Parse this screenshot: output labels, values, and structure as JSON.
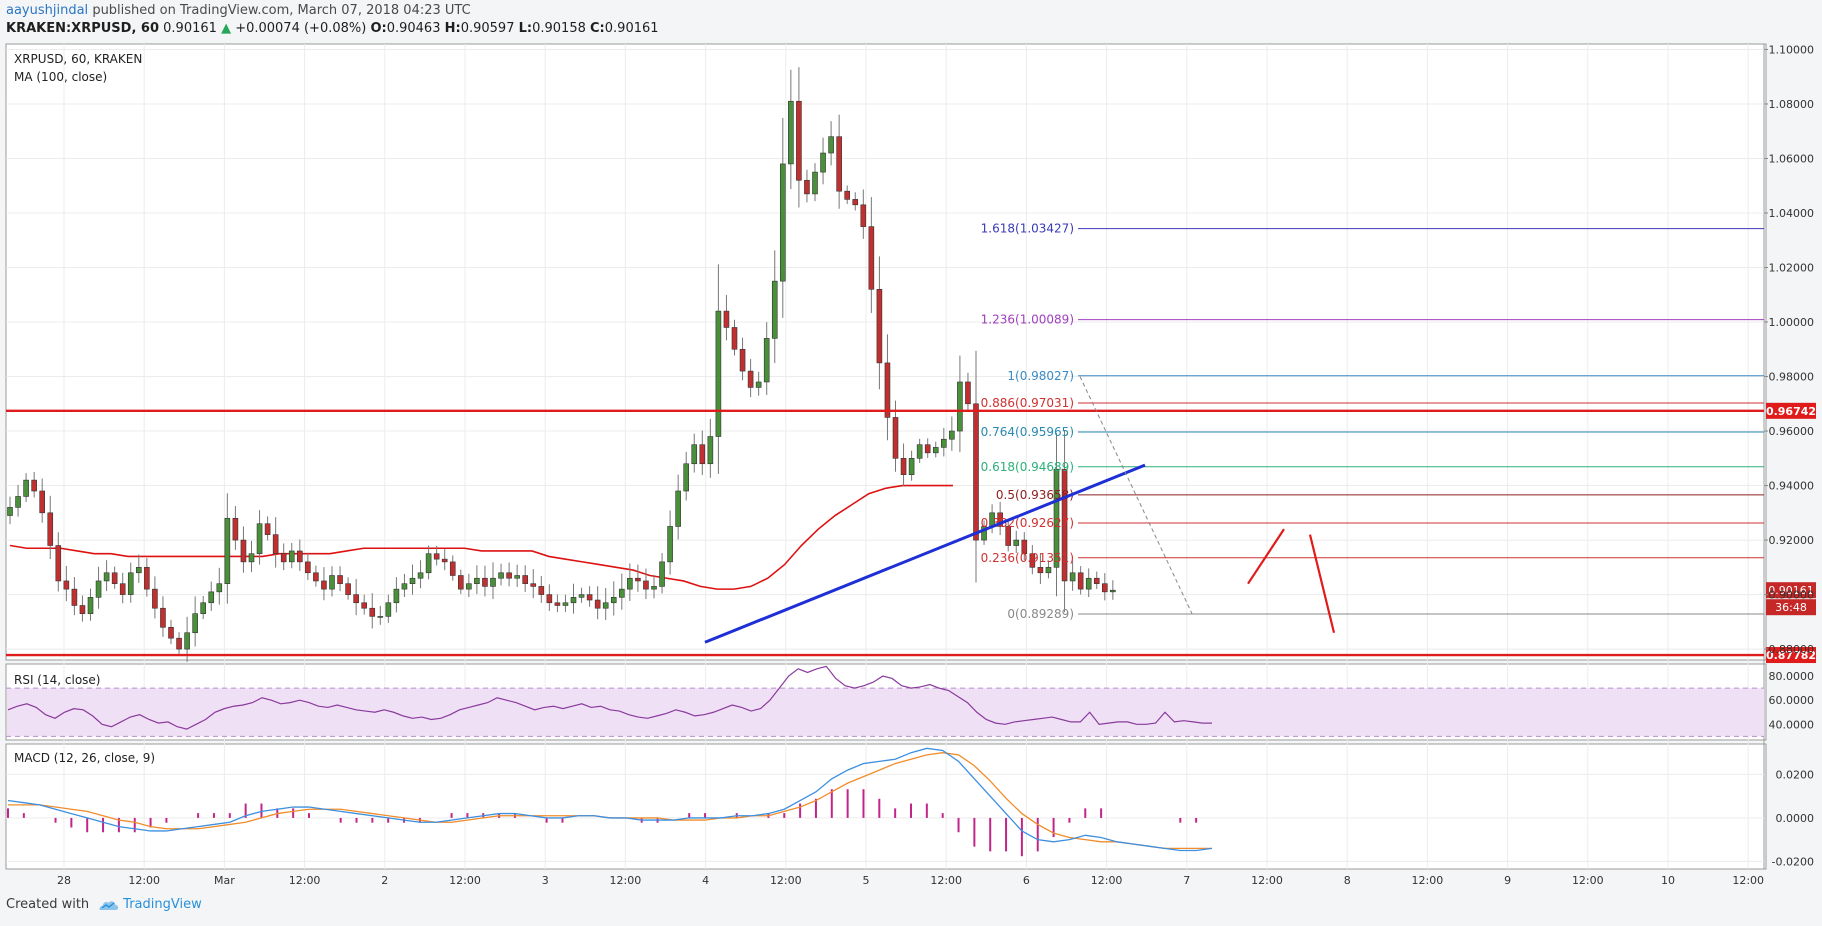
{
  "header": {
    "author": "aayushjindal",
    "published_text": "published on TradingView.com, March 07, 2018 04:23 UTC",
    "symbol_line": "KRAKEN:XRPUSD, 60",
    "last": "0.90161",
    "change_text": "+0.00074 (+0.08%)",
    "o_label": "O:",
    "o": "0.90463",
    "h_label": "H:",
    "h": "0.90597",
    "l_label": "L:",
    "l": "0.90158",
    "c_label": "C:",
    "c": "0.90161"
  },
  "panes": {
    "main_title": "XRPUSD, 60, KRAKEN",
    "ma_label": "MA (100, close)",
    "rsi_label": "RSI (14, close)",
    "macd_label": "MACD (12, 26, close, 9)"
  },
  "footer": {
    "created_with": "Created with",
    "brand": "TradingView"
  },
  "colors": {
    "up": "#4a8f3a",
    "down": "#c03030",
    "ma": "#dd1111",
    "trend": "#1e2fd6",
    "rsi": "#8a3a9c",
    "rsi_band": "#efe0f6",
    "macd": "#3d8fe0",
    "signal": "#f08c2a",
    "hist": "#c2258a"
  },
  "chart_data": [
    {
      "type": "candlestick",
      "title": "XRPUSD, 60, KRAKEN",
      "x_ticks": [
        "28",
        "12:00",
        "Mar",
        "12:00",
        "2",
        "12:00",
        "3",
        "12:00",
        "4",
        "12:00",
        "5",
        "12:00",
        "6",
        "12:00",
        "7",
        "12:00",
        "8",
        "12:00",
        "9",
        "12:00",
        "10",
        "12:00"
      ],
      "y_ticks": [
        "1.10000",
        "1.08000",
        "1.06000",
        "1.04000",
        "1.02000",
        "1.00000",
        "0.98000",
        "0.96000",
        "0.94000",
        "0.92000",
        "0.90000",
        "0.88000"
      ],
      "ylim": [
        0.876,
        1.102
      ],
      "close_series": [
        0.932,
        0.936,
        0.942,
        0.938,
        0.93,
        0.918,
        0.905,
        0.902,
        0.896,
        0.893,
        0.899,
        0.905,
        0.908,
        0.904,
        0.9,
        0.908,
        0.91,
        0.902,
        0.895,
        0.888,
        0.884,
        0.88,
        0.886,
        0.893,
        0.897,
        0.901,
        0.904,
        0.928,
        0.92,
        0.912,
        0.915,
        0.926,
        0.922,
        0.915,
        0.912,
        0.916,
        0.912,
        0.908,
        0.905,
        0.902,
        0.907,
        0.904,
        0.9,
        0.897,
        0.895,
        0.892,
        0.892,
        0.897,
        0.902,
        0.904,
        0.906,
        0.908,
        0.915,
        0.913,
        0.912,
        0.907,
        0.902,
        0.904,
        0.906,
        0.903,
        0.906,
        0.908,
        0.906,
        0.907,
        0.904,
        0.903,
        0.9,
        0.897,
        0.896,
        0.897,
        0.899,
        0.9,
        0.898,
        0.895,
        0.897,
        0.899,
        0.902,
        0.906,
        0.905,
        0.902,
        0.903,
        0.912,
        0.925,
        0.938,
        0.948,
        0.955,
        0.948,
        0.958,
        1.004,
        0.998,
        0.99,
        0.982,
        0.976,
        0.978,
        0.994,
        1.015,
        1.058,
        1.081,
        1.052,
        1.047,
        1.055,
        1.062,
        1.068,
        1.048,
        1.045,
        1.043,
        1.035,
        1.012,
        0.985,
        0.965,
        0.95,
        0.944,
        0.95,
        0.955,
        0.952,
        0.954,
        0.957,
        0.96,
        0.978,
        0.97,
        0.92,
        0.925,
        0.93,
        0.925,
        0.918,
        0.92,
        0.915,
        0.91,
        0.908,
        0.91,
        0.946,
        0.905,
        0.908,
        0.902,
        0.906,
        0.904,
        0.901,
        0.90161
      ],
      "ma_label": "MA (100, close)",
      "ma_series": [
        0.918,
        0.917,
        0.917,
        0.917,
        0.916,
        0.915,
        0.915,
        0.914,
        0.914,
        0.914,
        0.914,
        0.914,
        0.914,
        0.914,
        0.914,
        0.914,
        0.915,
        0.915,
        0.915,
        0.915,
        0.916,
        0.917,
        0.917,
        0.917,
        0.917,
        0.917,
        0.917,
        0.917,
        0.916,
        0.916,
        0.916,
        0.916,
        0.914,
        0.913,
        0.912,
        0.911,
        0.91,
        0.909,
        0.907,
        0.906,
        0.905,
        0.903,
        0.902,
        0.902,
        0.903,
        0.906,
        0.911,
        0.918,
        0.924,
        0.929,
        0.933,
        0.937,
        0.939,
        0.94,
        0.94,
        0.94,
        0.94
      ],
      "ma_x_start_index": 0,
      "fib_levels": [
        {
          "label": "1.618(1.03427)",
          "value": 1.03427
        },
        {
          "label": "1.236(1.00089)",
          "value": 1.00089
        },
        {
          "label": "1(0.98027)",
          "value": 0.98027
        },
        {
          "label": "0.886(0.97031)",
          "value": 0.97031
        },
        {
          "label": "0.764(0.95965)",
          "value": 0.95965
        },
        {
          "label": "0.618(0.94689)",
          "value": 0.94689
        },
        {
          "label": "0.5(0.93658)",
          "value": 0.93658
        },
        {
          "label": "0.382(0.92627)",
          "value": 0.92627
        },
        {
          "label": "0.236(0.91351)",
          "value": 0.91351
        },
        {
          "label": "0(0.89289)",
          "value": 0.89289
        }
      ],
      "horizontal_levels": [
        {
          "label": "0.96742",
          "value": 0.96742
        },
        {
          "label": "0.87782",
          "value": 0.87782
        }
      ],
      "price_label": "0.90161",
      "countdown_label": "36:48"
    },
    {
      "type": "line",
      "title": "RSI (14, close)",
      "y_ticks": [
        "80.0000",
        "60.0000",
        "40.0000"
      ],
      "ylim": [
        27,
        90
      ],
      "band": [
        30,
        70
      ],
      "values": [
        52,
        55,
        57,
        54,
        48,
        45,
        50,
        53,
        52,
        47,
        40,
        38,
        42,
        46,
        48,
        44,
        41,
        42,
        38,
        36,
        40,
        44,
        50,
        53,
        55,
        56,
        58,
        62,
        60,
        57,
        58,
        60,
        58,
        55,
        54,
        56,
        54,
        52,
        51,
        50,
        52,
        50,
        47,
        45,
        46,
        44,
        45,
        48,
        52,
        54,
        56,
        58,
        62,
        60,
        58,
        55,
        52,
        54,
        55,
        53,
        55,
        57,
        54,
        55,
        52,
        51,
        48,
        46,
        45,
        47,
        49,
        52,
        50,
        47,
        48,
        50,
        53,
        56,
        54,
        51,
        53,
        60,
        70,
        80,
        86,
        83,
        86,
        88,
        78,
        72,
        70,
        72,
        75,
        80,
        78,
        72,
        70,
        71,
        73,
        70,
        68,
        63,
        58,
        50,
        44,
        41,
        40,
        42,
        43,
        44,
        45,
        46,
        44,
        42,
        42,
        50,
        40,
        41,
        42,
        42,
        40,
        40,
        41,
        50,
        42,
        43,
        42,
        41,
        41
      ]
    },
    {
      "type": "line",
      "title": "MACD (12, 26, close, 9)",
      "y_ticks": [
        "0.0200",
        "0.0000",
        "-0.0200"
      ],
      "ylim": [
        -0.0235,
        0.034
      ],
      "macd": [
        0.008,
        0.007,
        0.006,
        0.004,
        0.002,
        0.0,
        -0.002,
        -0.004,
        -0.005,
        -0.006,
        -0.006,
        -0.005,
        -0.004,
        -0.003,
        -0.002,
        0.001,
        0.003,
        0.004,
        0.005,
        0.005,
        0.004,
        0.003,
        0.002,
        0.001,
        0.0,
        -0.001,
        -0.002,
        -0.002,
        -0.001,
        0.0,
        0.001,
        0.002,
        0.002,
        0.001,
        0.0,
        0.0,
        0.001,
        0.001,
        0.0,
        0.0,
        -0.001,
        -0.001,
        -0.001,
        0.0,
        0.0,
        0.0,
        0.001,
        0.001,
        0.002,
        0.004,
        0.008,
        0.012,
        0.018,
        0.022,
        0.025,
        0.026,
        0.027,
        0.03,
        0.032,
        0.031,
        0.026,
        0.018,
        0.01,
        0.002,
        -0.006,
        -0.01,
        -0.011,
        -0.01,
        -0.008,
        -0.009,
        -0.011,
        -0.012,
        -0.013,
        -0.014,
        -0.015,
        -0.015,
        -0.014
      ],
      "signal": [
        0.006,
        0.006,
        0.006,
        0.005,
        0.004,
        0.003,
        0.001,
        -0.001,
        -0.002,
        -0.004,
        -0.005,
        -0.005,
        -0.005,
        -0.004,
        -0.003,
        -0.002,
        0.0,
        0.002,
        0.003,
        0.004,
        0.004,
        0.004,
        0.003,
        0.002,
        0.001,
        0.0,
        -0.001,
        -0.002,
        -0.002,
        -0.001,
        0.0,
        0.001,
        0.001,
        0.001,
        0.001,
        0.001,
        0.001,
        0.001,
        0.0,
        0.0,
        0.0,
        0.0,
        -0.001,
        -0.001,
        -0.001,
        0.0,
        0.0,
        0.001,
        0.001,
        0.003,
        0.005,
        0.008,
        0.012,
        0.016,
        0.019,
        0.022,
        0.025,
        0.027,
        0.029,
        0.03,
        0.029,
        0.024,
        0.017,
        0.009,
        0.002,
        -0.003,
        -0.007,
        -0.009,
        -0.01,
        -0.011,
        -0.011,
        -0.012,
        -0.013,
        -0.014,
        -0.014,
        -0.014,
        -0.014
      ]
    }
  ]
}
